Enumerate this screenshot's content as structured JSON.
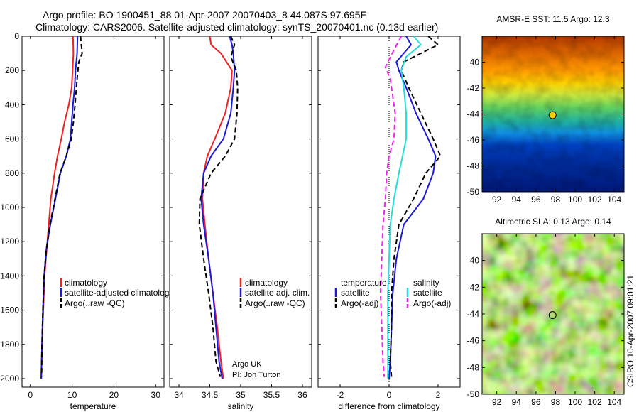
{
  "title": {
    "line1": "Argo profile: BO 1900451_88 01-Apr-2007 20070403_8 44.087S 97.695E",
    "line2": "Climatology: CARS2006. Satellite-adjusted climatology: synTS_20070401.nc (0.13d earlier)"
  },
  "footer": {
    "argo_label": "Argo UK",
    "pi_label": "PI: Jon Turton",
    "credit": "CSIRO 10-Apr-2007 09:01:21"
  },
  "colors": {
    "climatology": "#ee2222",
    "satellite": "#1a1ad6",
    "argo": "#000000",
    "salinity_sat": "#22dddd",
    "salinity_argo": "#ee22ee"
  },
  "chart_data": [
    {
      "type": "line",
      "name": "temperature-profile",
      "xlabel": "temperature",
      "ylabel": "",
      "xlim": [
        -2,
        32
      ],
      "ylim": [
        2050,
        0
      ],
      "xticks": [
        "0",
        "10",
        "20",
        "30"
      ],
      "xtick_values": [
        0,
        10,
        20,
        30
      ],
      "yticks": [
        "0",
        "200",
        "400",
        "600",
        "800",
        "1000",
        "1200",
        "1400",
        "1600",
        "1800",
        "2000"
      ],
      "ytick_values": [
        0,
        200,
        400,
        600,
        800,
        1000,
        1200,
        1400,
        1600,
        1800,
        2000
      ],
      "legend": [
        "climatology",
        "satellite-adjusted climatology",
        "Argo(..raw -QC)"
      ],
      "series": [
        {
          "name": "climatology",
          "color": "#ee2222",
          "dash": "",
          "x": [
            10.2,
            10.3,
            10.1,
            9.9,
            9.2,
            8.2,
            7.4,
            6.5,
            5.8,
            4.9,
            4.4,
            3.9,
            3.4,
            3.1,
            2.8,
            2.6
          ],
          "y": [
            0,
            100,
            200,
            300,
            400,
            500,
            600,
            700,
            800,
            950,
            1100,
            1250,
            1400,
            1600,
            1800,
            2000
          ]
        },
        {
          "name": "satellite-adjusted climatology",
          "color": "#1a1ad6",
          "dash": "",
          "x": [
            11.3,
            11.2,
            10.8,
            10.6,
            10.2,
            9.9,
            9.6,
            8.6,
            7.2,
            6.0,
            4.8,
            3.8,
            3.3,
            3.0,
            2.8,
            2.6
          ],
          "y": [
            0,
            100,
            200,
            300,
            400,
            500,
            600,
            700,
            800,
            950,
            1100,
            1250,
            1400,
            1600,
            1800,
            2000
          ]
        },
        {
          "name": "Argo(..raw -QC)",
          "color": "#000000",
          "dash": "7,4",
          "x": [
            12.0,
            12.4,
            11.6,
            11.2,
            10.7,
            10.3,
            9.8,
            8.6,
            7.1,
            5.9,
            4.7,
            3.8,
            3.3,
            3.0,
            2.8,
            2.7
          ],
          "y": [
            0,
            100,
            150,
            250,
            400,
            500,
            600,
            700,
            800,
            950,
            1100,
            1250,
            1400,
            1600,
            1800,
            1990
          ]
        }
      ]
    },
    {
      "type": "line",
      "name": "salinity-profile",
      "xlabel": "salinity",
      "ylabel": "",
      "xlim": [
        33.85,
        36.15
      ],
      "ylim": [
        2050,
        0
      ],
      "xticks": [
        "34",
        "34.5",
        "35",
        "35.5",
        "36"
      ],
      "xtick_values": [
        34,
        34.5,
        35,
        35.5,
        36
      ],
      "legend": [
        "climatology",
        "satellite adj. clim.",
        "Argo(..raw -QC)"
      ],
      "series": [
        {
          "name": "climatology",
          "color": "#ee2222",
          "dash": "",
          "x": [
            34.5,
            34.52,
            34.68,
            34.86,
            34.84,
            34.75,
            34.58,
            34.46,
            34.4,
            34.38,
            34.42,
            34.48,
            34.55,
            34.62,
            34.68,
            34.72
          ],
          "y": [
            0,
            50,
            100,
            200,
            300,
            450,
            600,
            700,
            800,
            950,
            1100,
            1300,
            1500,
            1700,
            1900,
            2000
          ]
        },
        {
          "name": "satellite adj. clim.",
          "color": "#1a1ad6",
          "dash": "",
          "x": [
            34.82,
            34.86,
            34.88,
            34.9,
            34.88,
            34.84,
            34.72,
            34.52,
            34.4,
            34.36,
            34.4,
            34.48,
            34.55,
            34.6,
            34.65,
            34.7
          ],
          "y": [
            0,
            50,
            100,
            200,
            300,
            450,
            600,
            700,
            800,
            950,
            1100,
            1300,
            1500,
            1700,
            1900,
            2000
          ]
        },
        {
          "name": "Argo(..raw -QC)",
          "color": "#000000",
          "dash": "7,4",
          "x": [
            34.84,
            34.9,
            34.84,
            34.93,
            34.95,
            34.94,
            34.9,
            34.75,
            34.52,
            34.34,
            34.33,
            34.4,
            34.48,
            34.55,
            34.6,
            34.67
          ],
          "y": [
            0,
            50,
            120,
            200,
            300,
            450,
            600,
            700,
            800,
            950,
            1100,
            1300,
            1500,
            1700,
            1900,
            1990
          ]
        }
      ]
    },
    {
      "type": "line",
      "name": "difference-profile",
      "xlabel": "difference from climatology",
      "ylabel": "",
      "xlim": [
        -2.9,
        2.9
      ],
      "ylim": [
        2050,
        0
      ],
      "xticks": [
        "-2",
        "0",
        "2"
      ],
      "xtick_values": [
        -2,
        0,
        2
      ],
      "legend_headers": [
        "temperature",
        "salinity"
      ],
      "legend": [
        "satellite",
        "Argo(-adj)",
        "satellite",
        "Argo(-adj)"
      ],
      "series": [
        {
          "name": "temperature satellite",
          "color": "#1a1ad6",
          "dash": "",
          "x": [
            0.7,
            0.9,
            0.3,
            0.4,
            0.7,
            1.1,
            1.6,
            1.9,
            1.8,
            1.4,
            0.6,
            0.3,
            0.15,
            0.1,
            0.05,
            0.0
          ],
          "y": [
            0,
            50,
            150,
            200,
            300,
            450,
            600,
            700,
            800,
            950,
            1100,
            1300,
            1500,
            1700,
            1900,
            2000
          ]
        },
        {
          "name": "temperature Argo(-adj)",
          "color": "#000000",
          "dash": "7,4",
          "x": [
            1.6,
            2.0,
            0.6,
            0.5,
            0.8,
            1.3,
            1.8,
            2.1,
            1.5,
            1.0,
            0.4,
            0.2,
            0.1,
            0.1,
            0.05,
            0.1
          ],
          "y": [
            0,
            50,
            150,
            200,
            300,
            450,
            600,
            700,
            800,
            950,
            1100,
            1300,
            1500,
            1700,
            1900,
            1990
          ]
        },
        {
          "name": "salinity satellite",
          "color": "#22dddd",
          "dash": "",
          "x": [
            1.0,
            1.3,
            0.7,
            0.5,
            0.6,
            0.7,
            0.7,
            0.55,
            0.4,
            0.2,
            0.05,
            0.0,
            -0.05,
            -0.05,
            -0.05,
            -0.05
          ],
          "y": [
            0,
            50,
            120,
            200,
            300,
            450,
            600,
            700,
            800,
            950,
            1100,
            1300,
            1500,
            1700,
            1900,
            2000
          ]
        },
        {
          "name": "salinity Argo(-adj)",
          "color": "#ee22ee",
          "dash": "7,4",
          "x": [
            0.5,
            0.2,
            -0.15,
            0.05,
            0.15,
            0.25,
            0.2,
            0.0,
            -0.1,
            -0.15,
            -0.25,
            -0.3,
            -0.35,
            -0.3,
            -0.25,
            -0.2
          ],
          "y": [
            0,
            80,
            180,
            250,
            350,
            450,
            600,
            700,
            800,
            950,
            1100,
            1300,
            1500,
            1700,
            1900,
            1990
          ]
        }
      ]
    },
    {
      "type": "heatmap",
      "name": "amsr-sst-map",
      "title": "AMSR-E SST: 11.5  Argo: 12.3",
      "xlim": [
        90.5,
        105
      ],
      "ylim": [
        -50,
        -38
      ],
      "xticks": [
        "92",
        "94",
        "96",
        "98",
        "100",
        "102",
        "104"
      ],
      "xtick_values": [
        92,
        94,
        96,
        98,
        100,
        102,
        104
      ],
      "yticks": [
        "-40",
        "-42",
        "-44",
        "-46",
        "-48",
        "-50"
      ],
      "ytick_values": [
        -40,
        -42,
        -44,
        -46,
        -48,
        -50
      ],
      "marker": {
        "lon": 97.695,
        "lat": -44.087
      }
    },
    {
      "type": "heatmap",
      "name": "altimetric-sla-map",
      "title": "Altimetric SLA: 0.13  Argo: 0.14",
      "xlim": [
        90.5,
        105
      ],
      "ylim": [
        -50,
        -38
      ],
      "xticks": [
        "92",
        "94",
        "96",
        "98",
        "100",
        "102",
        "104"
      ],
      "xtick_values": [
        92,
        94,
        96,
        98,
        100,
        102,
        104
      ],
      "yticks": [
        "-40",
        "-42",
        "-44",
        "-46",
        "-48",
        "-50"
      ],
      "ytick_values": [
        -40,
        -42,
        -44,
        -46,
        -48,
        -50
      ],
      "marker": {
        "lon": 97.695,
        "lat": -44.087
      }
    }
  ]
}
